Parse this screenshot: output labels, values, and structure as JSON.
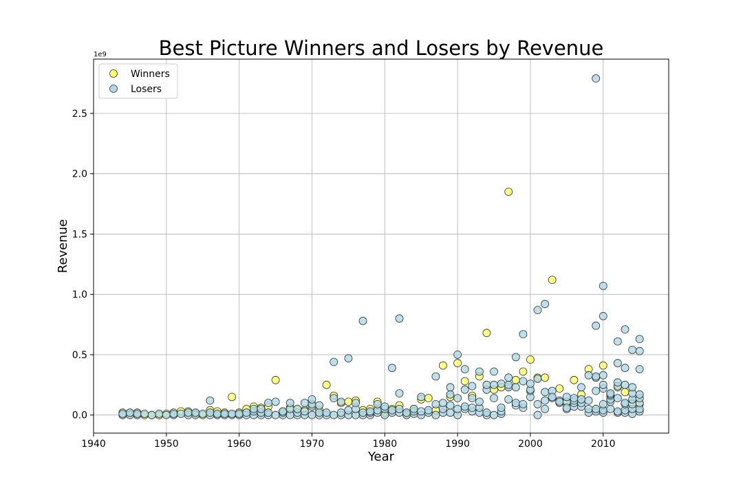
{
  "chart_data": {
    "type": "scatter",
    "title": "Best Picture Winners and Losers by Revenue",
    "xlabel": "Year",
    "ylabel": "Revenue",
    "y_multiplier_label": "1e9",
    "xlim": [
      1940,
      2019
    ],
    "ylim": [
      -0.15,
      2.95
    ],
    "y_unit": "1e9",
    "xticks": [
      1940,
      1950,
      1960,
      1970,
      1980,
      1990,
      2000,
      2010
    ],
    "yticks": [
      0.0,
      0.5,
      1.0,
      1.5,
      2.0,
      2.5
    ],
    "ytick_labels": [
      "0.0",
      "0.5",
      "1.0",
      "1.5",
      "2.0",
      "2.5"
    ],
    "grid": true,
    "legend_position": "top-left",
    "series": [
      {
        "name": "Winners",
        "color": "#ffff66",
        "points": [
          [
            1944,
            0.02
          ],
          [
            1945,
            0.01
          ],
          [
            1946,
            0.02
          ],
          [
            1947,
            0.0
          ],
          [
            1948,
            0.0
          ],
          [
            1949,
            0.0
          ],
          [
            1950,
            0.01
          ],
          [
            1951,
            0.02
          ],
          [
            1952,
            0.03
          ],
          [
            1953,
            0.03
          ],
          [
            1954,
            0.01
          ],
          [
            1955,
            0.0
          ],
          [
            1956,
            0.04
          ],
          [
            1957,
            0.03
          ],
          [
            1958,
            0.02
          ],
          [
            1959,
            0.15
          ],
          [
            1960,
            0.02
          ],
          [
            1961,
            0.05
          ],
          [
            1962,
            0.07
          ],
          [
            1963,
            0.06
          ],
          [
            1964,
            0.07
          ],
          [
            1965,
            0.29
          ],
          [
            1966,
            0.03
          ],
          [
            1967,
            0.06
          ],
          [
            1968,
            0.05
          ],
          [
            1969,
            0.04
          ],
          [
            1970,
            0.08
          ],
          [
            1971,
            0.04
          ],
          [
            1972,
            0.25
          ],
          [
            1973,
            0.16
          ],
          [
            1974,
            0.1
          ],
          [
            1975,
            0.11
          ],
          [
            1976,
            0.12
          ],
          [
            1977,
            0.04
          ],
          [
            1978,
            0.05
          ],
          [
            1979,
            0.11
          ],
          [
            1980,
            0.02
          ],
          [
            1981,
            0.05
          ],
          [
            1982,
            0.08
          ],
          [
            1983,
            0.01
          ],
          [
            1984,
            0.05
          ],
          [
            1985,
            0.13
          ],
          [
            1986,
            0.14
          ],
          [
            1987,
            0.04
          ],
          [
            1988,
            0.41
          ],
          [
            1989,
            0.15
          ],
          [
            1990,
            0.43
          ],
          [
            1991,
            0.28
          ],
          [
            1992,
            0.16
          ],
          [
            1993,
            0.32
          ],
          [
            1994,
            0.68
          ],
          [
            1995,
            0.21
          ],
          [
            1996,
            0.23
          ],
          [
            1997,
            1.85
          ],
          [
            1998,
            0.29
          ],
          [
            1999,
            0.36
          ],
          [
            2000,
            0.46
          ],
          [
            2001,
            0.31
          ],
          [
            2002,
            0.31
          ],
          [
            2003,
            1.12
          ],
          [
            2004,
            0.22
          ],
          [
            2005,
            0.1
          ],
          [
            2006,
            0.29
          ],
          [
            2007,
            0.17
          ],
          [
            2008,
            0.38
          ],
          [
            2009,
            0.05
          ],
          [
            2010,
            0.41
          ],
          [
            2011,
            0.13
          ],
          [
            2012,
            0.23
          ],
          [
            2013,
            0.19
          ],
          [
            2014,
            0.1
          ],
          [
            2015,
            0.09
          ]
        ]
      },
      {
        "name": "Losers",
        "color": "#add8e6",
        "points": [
          [
            1944,
            0.0
          ],
          [
            1944,
            0.01
          ],
          [
            1945,
            0.0
          ],
          [
            1945,
            0.02
          ],
          [
            1946,
            0.0
          ],
          [
            1946,
            0.01
          ],
          [
            1947,
            0.01
          ],
          [
            1948,
            0.0
          ],
          [
            1949,
            0.01
          ],
          [
            1950,
            0.0
          ],
          [
            1951,
            0.0
          ],
          [
            1951,
            0.01
          ],
          [
            1952,
            0.01
          ],
          [
            1953,
            0.0
          ],
          [
            1953,
            0.02
          ],
          [
            1954,
            0.0
          ],
          [
            1954,
            0.02
          ],
          [
            1955,
            0.01
          ],
          [
            1956,
            0.0
          ],
          [
            1956,
            0.02
          ],
          [
            1956,
            0.12
          ],
          [
            1957,
            0.0
          ],
          [
            1957,
            0.01
          ],
          [
            1958,
            0.0
          ],
          [
            1958,
            0.01
          ],
          [
            1959,
            0.0
          ],
          [
            1959,
            0.01
          ],
          [
            1960,
            0.0
          ],
          [
            1960,
            0.01
          ],
          [
            1961,
            0.0
          ],
          [
            1961,
            0.02
          ],
          [
            1962,
            0.0
          ],
          [
            1962,
            0.03
          ],
          [
            1962,
            0.05
          ],
          [
            1963,
            0.0
          ],
          [
            1963,
            0.02
          ],
          [
            1963,
            0.05
          ],
          [
            1964,
            0.0
          ],
          [
            1964,
            0.02
          ],
          [
            1964,
            0.1
          ],
          [
            1965,
            0.0
          ],
          [
            1965,
            0.11
          ],
          [
            1966,
            0.0
          ],
          [
            1966,
            0.02
          ],
          [
            1966,
            0.03
          ],
          [
            1967,
            0.0
          ],
          [
            1967,
            0.05
          ],
          [
            1967,
            0.1
          ],
          [
            1968,
            0.0
          ],
          [
            1968,
            0.02
          ],
          [
            1968,
            0.05
          ],
          [
            1969,
            0.0
          ],
          [
            1969,
            0.03
          ],
          [
            1969,
            0.1
          ],
          [
            1970,
            0.0
          ],
          [
            1970,
            0.07
          ],
          [
            1970,
            0.09
          ],
          [
            1970,
            0.13
          ],
          [
            1971,
            0.0
          ],
          [
            1971,
            0.02
          ],
          [
            1971,
            0.08
          ],
          [
            1972,
            0.0
          ],
          [
            1972,
            0.02
          ],
          [
            1973,
            0.0
          ],
          [
            1973,
            0.14
          ],
          [
            1973,
            0.44
          ],
          [
            1974,
            0.0
          ],
          [
            1974,
            0.02
          ],
          [
            1974,
            0.11
          ],
          [
            1975,
            0.0
          ],
          [
            1975,
            0.04
          ],
          [
            1975,
            0.47
          ],
          [
            1976,
            0.0
          ],
          [
            1976,
            0.05
          ],
          [
            1976,
            0.1
          ],
          [
            1977,
            0.0
          ],
          [
            1977,
            0.02
          ],
          [
            1977,
            0.78
          ],
          [
            1978,
            0.0
          ],
          [
            1978,
            0.02
          ],
          [
            1978,
            0.03
          ],
          [
            1979,
            0.02
          ],
          [
            1979,
            0.04
          ],
          [
            1979,
            0.09
          ],
          [
            1980,
            0.0
          ],
          [
            1980,
            0.05
          ],
          [
            1980,
            0.07
          ],
          [
            1981,
            0.02
          ],
          [
            1981,
            0.04
          ],
          [
            1981,
            0.39
          ],
          [
            1982,
            0.02
          ],
          [
            1982,
            0.05
          ],
          [
            1982,
            0.18
          ],
          [
            1982,
            0.8
          ],
          [
            1983,
            0.0
          ],
          [
            1983,
            0.02
          ],
          [
            1984,
            0.01
          ],
          [
            1984,
            0.03
          ],
          [
            1984,
            0.05
          ],
          [
            1985,
            0.0
          ],
          [
            1985,
            0.03
          ],
          [
            1985,
            0.15
          ],
          [
            1986,
            0.02
          ],
          [
            1986,
            0.04
          ],
          [
            1987,
            0.0
          ],
          [
            1987,
            0.09
          ],
          [
            1987,
            0.32
          ],
          [
            1988,
            0.02
          ],
          [
            1988,
            0.05
          ],
          [
            1988,
            0.1
          ],
          [
            1989,
            0.02
          ],
          [
            1989,
            0.08
          ],
          [
            1989,
            0.17
          ],
          [
            1989,
            0.23
          ],
          [
            1990,
            0.0
          ],
          [
            1990,
            0.05
          ],
          [
            1990,
            0.14
          ],
          [
            1990,
            0.5
          ],
          [
            1991,
            0.05
          ],
          [
            1991,
            0.07
          ],
          [
            1991,
            0.21
          ],
          [
            1991,
            0.38
          ],
          [
            1992,
            0.03
          ],
          [
            1992,
            0.06
          ],
          [
            1992,
            0.14
          ],
          [
            1992,
            0.24
          ],
          [
            1993,
            0.02
          ],
          [
            1993,
            0.06
          ],
          [
            1993,
            0.11
          ],
          [
            1993,
            0.36
          ],
          [
            1994,
            0.0
          ],
          [
            1994,
            0.02
          ],
          [
            1994,
            0.21
          ],
          [
            1994,
            0.25
          ],
          [
            1995,
            0.0
          ],
          [
            1995,
            0.14
          ],
          [
            1995,
            0.25
          ],
          [
            1995,
            0.36
          ],
          [
            1996,
            0.01
          ],
          [
            1996,
            0.03
          ],
          [
            1996,
            0.06
          ],
          [
            1996,
            0.26
          ],
          [
            1997,
            0.13
          ],
          [
            1997,
            0.23
          ],
          [
            1997,
            0.25
          ],
          [
            1997,
            0.31
          ],
          [
            1998,
            0.08
          ],
          [
            1998,
            0.1
          ],
          [
            1998,
            0.23
          ],
          [
            1998,
            0.48
          ],
          [
            1999,
            0.06
          ],
          [
            1999,
            0.09
          ],
          [
            1999,
            0.28
          ],
          [
            1999,
            0.67
          ],
          [
            2000,
            0.15
          ],
          [
            2000,
            0.2
          ],
          [
            2000,
            0.21
          ],
          [
            2000,
            0.26
          ],
          [
            2001,
            0.0
          ],
          [
            2001,
            0.09
          ],
          [
            2001,
            0.3
          ],
          [
            2001,
            0.87
          ],
          [
            2002,
            0.05
          ],
          [
            2002,
            0.12
          ],
          [
            2002,
            0.19
          ],
          [
            2002,
            0.92
          ],
          [
            2003,
            0.14
          ],
          [
            2003,
            0.2
          ],
          [
            2003,
            0.15
          ],
          [
            2004,
            0.1
          ],
          [
            2004,
            0.12
          ],
          [
            2004,
            0.11
          ],
          [
            2005,
            0.05
          ],
          [
            2005,
            0.11
          ],
          [
            2005,
            0.15
          ],
          [
            2005,
            0.06
          ],
          [
            2006,
            0.07
          ],
          [
            2006,
            0.1
          ],
          [
            2006,
            0.12
          ],
          [
            2006,
            0.14
          ],
          [
            2007,
            0.07
          ],
          [
            2007,
            0.1
          ],
          [
            2007,
            0.13
          ],
          [
            2007,
            0.23
          ],
          [
            2008,
            0.02
          ],
          [
            2008,
            0.05
          ],
          [
            2008,
            0.12
          ],
          [
            2008,
            0.33
          ],
          [
            2009,
            0.03
          ],
          [
            2009,
            0.05
          ],
          [
            2009,
            0.2
          ],
          [
            2009,
            0.31
          ],
          [
            2009,
            0.32
          ],
          [
            2009,
            0.74
          ],
          [
            2009,
            2.79
          ],
          [
            2010,
            0.02
          ],
          [
            2010,
            0.04
          ],
          [
            2010,
            0.09
          ],
          [
            2010,
            0.22
          ],
          [
            2010,
            0.25
          ],
          [
            2010,
            0.33
          ],
          [
            2010,
            0.82
          ],
          [
            2010,
            1.07
          ],
          [
            2011,
            0.05
          ],
          [
            2011,
            0.11
          ],
          [
            2011,
            0.13
          ],
          [
            2011,
            0.16
          ],
          [
            2011,
            0.17
          ],
          [
            2011,
            0.18
          ],
          [
            2012,
            0.02
          ],
          [
            2012,
            0.03
          ],
          [
            2012,
            0.14
          ],
          [
            2012,
            0.24
          ],
          [
            2012,
            0.27
          ],
          [
            2012,
            0.43
          ],
          [
            2012,
            0.61
          ],
          [
            2013,
            0.02
          ],
          [
            2013,
            0.04
          ],
          [
            2013,
            0.09
          ],
          [
            2013,
            0.1
          ],
          [
            2013,
            0.25
          ],
          [
            2013,
            0.39
          ],
          [
            2013,
            0.71
          ],
          [
            2014,
            0.01
          ],
          [
            2014,
            0.05
          ],
          [
            2014,
            0.09
          ],
          [
            2014,
            0.13
          ],
          [
            2014,
            0.18
          ],
          [
            2014,
            0.23
          ],
          [
            2014,
            0.54
          ],
          [
            2015,
            0.03
          ],
          [
            2015,
            0.05
          ],
          [
            2015,
            0.1
          ],
          [
            2015,
            0.14
          ],
          [
            2015,
            0.17
          ],
          [
            2015,
            0.38
          ],
          [
            2015,
            0.53
          ],
          [
            2015,
            0.63
          ]
        ]
      }
    ]
  }
}
